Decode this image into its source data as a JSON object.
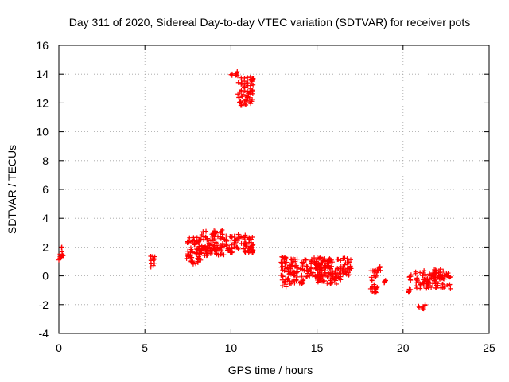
{
  "chart_data": {
    "type": "scatter",
    "title": "Day 311 of 2020, Sidereal Day-to-day VTEC variation (SDTVAR) for receiver pots",
    "xlabel": "GPS time / hours",
    "ylabel": "SDTVAR / TECUs",
    "xlim": [
      0,
      25
    ],
    "ylim": [
      -4,
      16
    ],
    "xticks": [
      0,
      5,
      10,
      15,
      20,
      25
    ],
    "yticks": [
      -4,
      -2,
      0,
      2,
      4,
      6,
      8,
      10,
      12,
      14,
      16
    ],
    "grid": true,
    "marker": "+",
    "color": "#ff0000",
    "series": [
      {
        "name": "SDTVAR",
        "clusters": [
          {
            "x": [
              0.0,
              0.25
            ],
            "y": [
              1.0,
              2.1
            ]
          },
          {
            "x": [
              5.3,
              5.6
            ],
            "y": [
              0.5,
              1.4
            ]
          },
          {
            "x": [
              7.4,
              8.3
            ],
            "y": [
              0.8,
              2.7
            ]
          },
          {
            "x": [
              8.3,
              9.6
            ],
            "y": [
              1.4,
              3.2
            ]
          },
          {
            "x": [
              9.6,
              11.3
            ],
            "y": [
              1.6,
              2.9
            ]
          },
          {
            "x": [
              10.0,
              10.4
            ],
            "y": [
              13.8,
              14.4
            ]
          },
          {
            "x": [
              10.4,
              11.3
            ],
            "y": [
              11.8,
              13.8
            ]
          },
          {
            "x": [
              12.9,
              13.3
            ],
            "y": [
              -0.8,
              1.4
            ]
          },
          {
            "x": [
              13.3,
              14.2
            ],
            "y": [
              -0.6,
              1.2
            ]
          },
          {
            "x": [
              14.2,
              15.5
            ],
            "y": [
              -0.1,
              1.3
            ]
          },
          {
            "x": [
              15.0,
              16.4
            ],
            "y": [
              -0.6,
              1.2
            ]
          },
          {
            "x": [
              16.4,
              17.0
            ],
            "y": [
              0.0,
              1.3
            ]
          },
          {
            "x": [
              18.1,
              18.5
            ],
            "y": [
              -1.3,
              0.5
            ]
          },
          {
            "x": [
              18.5,
              18.7
            ],
            "y": [
              0.3,
              0.7
            ]
          },
          {
            "x": [
              18.9,
              19.1
            ],
            "y": [
              -0.5,
              -0.3
            ]
          },
          {
            "x": [
              20.3,
              20.5
            ],
            "y": [
              -0.3,
              0.2
            ]
          },
          {
            "x": [
              20.3,
              20.5
            ],
            "y": [
              -1.2,
              -0.9
            ]
          },
          {
            "x": [
              20.7,
              22.8
            ],
            "y": [
              -0.9,
              0.5
            ]
          },
          {
            "x": [
              20.9,
              21.3
            ],
            "y": [
              -2.3,
              -1.8
            ]
          }
        ]
      }
    ]
  }
}
